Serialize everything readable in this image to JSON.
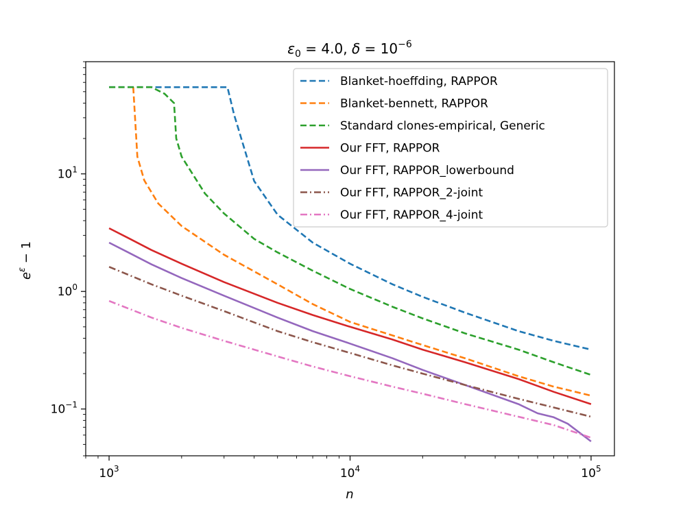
{
  "chart_data": {
    "type": "line",
    "title": "ε₀ = 4.0, δ = 10⁻⁶",
    "title_parts": {
      "eps_sym": "ε",
      "eps_sub": "0",
      "eps_val": " = 4.0, ",
      "delta_sym": "δ",
      "delta_val": " = 10",
      "delta_exp": "−6"
    },
    "xlabel": "n",
    "ylabel_parts": {
      "base": "e",
      "exp": "ε",
      "tail": " − 1"
    },
    "xscale": "log",
    "yscale": "log",
    "xlim": [
      800,
      125000
    ],
    "ylim": [
      0.04,
      90
    ],
    "grid": false,
    "legend_position": "top-right",
    "x_ticks": [
      {
        "value": 1000,
        "mantissa": "10",
        "exp": "3"
      },
      {
        "value": 10000,
        "mantissa": "10",
        "exp": "4"
      },
      {
        "value": 100000,
        "mantissa": "10",
        "exp": "5"
      }
    ],
    "y_ticks": [
      {
        "value": 0.1,
        "mantissa": "10",
        "exp": "−1"
      },
      {
        "value": 1,
        "mantissa": "10",
        "exp": "0"
      },
      {
        "value": 10,
        "mantissa": "10",
        "exp": "1"
      }
    ],
    "series": [
      {
        "name": "Blanket-hoeffding, RAPPOR",
        "color": "#1f77b4",
        "dash": "dashed",
        "points": [
          [
            1000,
            54.6
          ],
          [
            2000,
            54.6
          ],
          [
            3100,
            54.6
          ],
          [
            3300,
            32
          ],
          [
            4000,
            8.7
          ],
          [
            5000,
            4.5
          ],
          [
            7000,
            2.6
          ],
          [
            10000,
            1.72
          ],
          [
            15000,
            1.15
          ],
          [
            20000,
            0.9
          ],
          [
            30000,
            0.66
          ],
          [
            50000,
            0.46
          ],
          [
            70000,
            0.38
          ],
          [
            100000,
            0.32
          ]
        ]
      },
      {
        "name": "Blanket-bennett, RAPPOR",
        "color": "#ff7f0e",
        "dash": "dashed",
        "points": [
          [
            1260,
            54.6
          ],
          [
            1310,
            14
          ],
          [
            1400,
            8.8
          ],
          [
            1600,
            5.6
          ],
          [
            2000,
            3.6
          ],
          [
            3000,
            2.05
          ],
          [
            5000,
            1.15
          ],
          [
            7000,
            0.78
          ],
          [
            10000,
            0.55
          ],
          [
            20000,
            0.35
          ],
          [
            30000,
            0.27
          ],
          [
            50000,
            0.19
          ],
          [
            70000,
            0.155
          ],
          [
            100000,
            0.13
          ]
        ]
      },
      {
        "name": "Standard clones-empirical, Generic",
        "color": "#2ca02c",
        "dash": "dashed",
        "points": [
          [
            1000,
            54.6
          ],
          [
            1500,
            54.6
          ],
          [
            1700,
            48
          ],
          [
            1860,
            40
          ],
          [
            1900,
            20
          ],
          [
            2000,
            14
          ],
          [
            2500,
            6.8
          ],
          [
            3000,
            4.6
          ],
          [
            4000,
            2.8
          ],
          [
            5000,
            2.15
          ],
          [
            7000,
            1.5
          ],
          [
            10000,
            1.05
          ],
          [
            15000,
            0.74
          ],
          [
            20000,
            0.59
          ],
          [
            30000,
            0.44
          ],
          [
            50000,
            0.32
          ],
          [
            70000,
            0.25
          ],
          [
            100000,
            0.195
          ]
        ]
      },
      {
        "name": "Our FFT, RAPPOR",
        "color": "#d62728",
        "dash": "solid",
        "points": [
          [
            1000,
            3.45
          ],
          [
            1200,
            2.85
          ],
          [
            1500,
            2.25
          ],
          [
            2000,
            1.72
          ],
          [
            3000,
            1.2
          ],
          [
            5000,
            0.8
          ],
          [
            7000,
            0.63
          ],
          [
            10000,
            0.5
          ],
          [
            15000,
            0.39
          ],
          [
            20000,
            0.32
          ],
          [
            30000,
            0.25
          ],
          [
            50000,
            0.18
          ],
          [
            70000,
            0.14
          ],
          [
            100000,
            0.11
          ]
        ]
      },
      {
        "name": "Our FFT, RAPPOR_lowerbound",
        "color": "#9467bd",
        "dash": "solid",
        "points": [
          [
            1000,
            2.6
          ],
          [
            1200,
            2.15
          ],
          [
            1500,
            1.7
          ],
          [
            2000,
            1.3
          ],
          [
            3000,
            0.92
          ],
          [
            5000,
            0.6
          ],
          [
            7000,
            0.46
          ],
          [
            10000,
            0.36
          ],
          [
            15000,
            0.27
          ],
          [
            20000,
            0.215
          ],
          [
            30000,
            0.16
          ],
          [
            50000,
            0.11
          ],
          [
            60000,
            0.092
          ],
          [
            70000,
            0.085
          ],
          [
            80000,
            0.075
          ],
          [
            100000,
            0.053
          ]
        ]
      },
      {
        "name": "Our FFT, RAPPOR_2-joint",
        "color": "#8c564b",
        "dash": "dashdot",
        "points": [
          [
            1000,
            1.62
          ],
          [
            1500,
            1.15
          ],
          [
            2000,
            0.92
          ],
          [
            3000,
            0.68
          ],
          [
            5000,
            0.46
          ],
          [
            7000,
            0.37
          ],
          [
            10000,
            0.3
          ],
          [
            15000,
            0.235
          ],
          [
            20000,
            0.2
          ],
          [
            30000,
            0.16
          ],
          [
            50000,
            0.122
          ],
          [
            70000,
            0.103
          ],
          [
            100000,
            0.086
          ]
        ]
      },
      {
        "name": "Our FFT, RAPPOR_4-joint",
        "color": "#e377c2",
        "dash": "dashdot",
        "points": [
          [
            1000,
            0.83
          ],
          [
            1500,
            0.6
          ],
          [
            2000,
            0.49
          ],
          [
            3000,
            0.38
          ],
          [
            5000,
            0.28
          ],
          [
            7000,
            0.23
          ],
          [
            10000,
            0.19
          ],
          [
            15000,
            0.155
          ],
          [
            20000,
            0.135
          ],
          [
            30000,
            0.11
          ],
          [
            50000,
            0.086
          ],
          [
            70000,
            0.073
          ],
          [
            100000,
            0.057
          ]
        ]
      }
    ]
  }
}
